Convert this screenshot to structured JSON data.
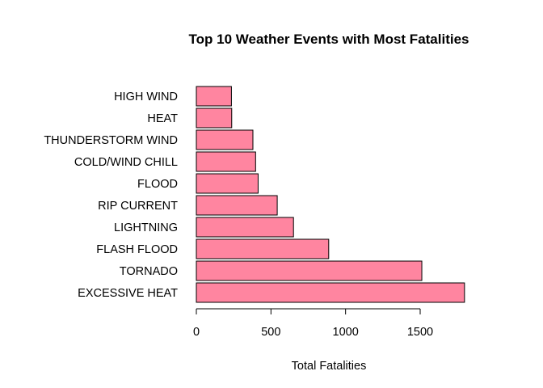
{
  "chart_data": {
    "type": "bar",
    "orientation": "horizontal",
    "title": "Top 10 Weather Events with Most Fatalities",
    "xlabel": "Total Fatalities",
    "ylabel": "",
    "categories": [
      "EXCESSIVE HEAT",
      "TORNADO",
      "FLASH FLOOD",
      "LIGHTNING",
      "RIP CURRENT",
      "FLOOD",
      "COLD/WIND CHILL",
      "THUNDERSTORM WIND",
      "HEAT",
      "HIGH WIND"
    ],
    "values": [
      1797,
      1511,
      887,
      651,
      542,
      414,
      397,
      379,
      237,
      235
    ],
    "xlim": [
      0,
      1800
    ],
    "xticks": [
      0,
      500,
      1000,
      1500
    ],
    "grid": false,
    "bar_color": "#FF85A0"
  }
}
